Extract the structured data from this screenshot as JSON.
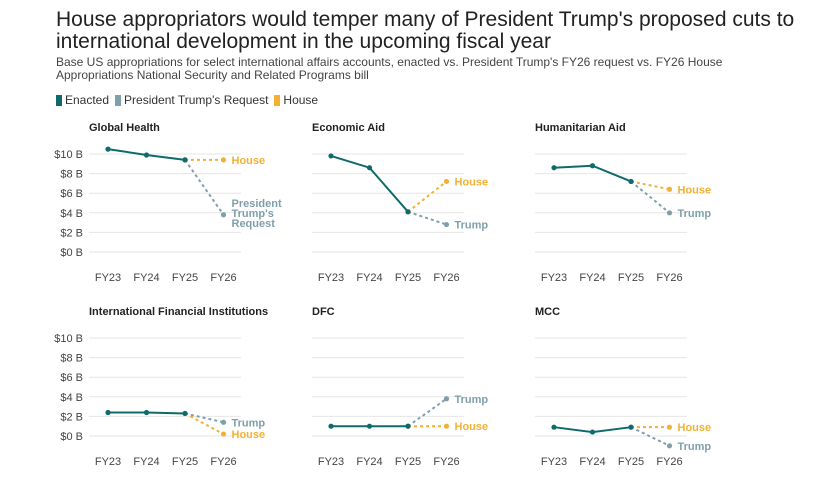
{
  "title": "House appropriators would temper many of President Trump's proposed cuts to international development in the upcoming fiscal year",
  "subtitle": "Base US appropriations for select international affairs accounts, enacted vs. President Trump's FY26 request vs. FY26 House Appropriations National Security and Related Programs bill",
  "legend": [
    {
      "label": "Enacted",
      "color": "#0f6b6b"
    },
    {
      "label": "President Trump's Request",
      "color": "#7f9faa"
    },
    {
      "label": "House",
      "color": "#f2b134"
    }
  ],
  "colors": {
    "enacted": "#0f6b6b",
    "request": "#7f9faa",
    "house": "#f2b134",
    "grid": "#e6e6e6",
    "axis_text": "#444444"
  },
  "chart_data": [
    {
      "type": "line",
      "title": "Global Health",
      "categories": [
        "FY23",
        "FY24",
        "FY25",
        "FY26"
      ],
      "y_ticks": [
        "$10 B",
        "$8 B",
        "$6 B",
        "$4 B",
        "$2 B",
        "$0 B"
      ],
      "show_y_ticks": true,
      "ylim": [
        0,
        10
      ],
      "unit": "$B",
      "series": [
        {
          "name": "Enacted",
          "values": [
            10.5,
            9.9,
            9.4,
            null
          ]
        },
        {
          "name": "House",
          "values": [
            null,
            null,
            9.4,
            9.4
          ],
          "label": "House"
        },
        {
          "name": "President Trump's Request",
          "values": [
            null,
            null,
            9.4,
            3.8
          ],
          "label": "President Trump's Request"
        }
      ]
    },
    {
      "type": "line",
      "title": "Economic Aid",
      "categories": [
        "FY23",
        "FY24",
        "FY25",
        "FY26"
      ],
      "show_y_ticks": false,
      "ylim": [
        0,
        10
      ],
      "unit": "$B",
      "series": [
        {
          "name": "Enacted",
          "values": [
            9.8,
            8.6,
            4.1,
            null
          ]
        },
        {
          "name": "House",
          "values": [
            null,
            null,
            4.1,
            7.2
          ],
          "label": "House"
        },
        {
          "name": "President Trump's Request",
          "values": [
            null,
            null,
            4.1,
            2.8
          ],
          "label": "Trump"
        }
      ]
    },
    {
      "type": "line",
      "title": "Humanitarian Aid",
      "categories": [
        "FY23",
        "FY24",
        "FY25",
        "FY26"
      ],
      "show_y_ticks": false,
      "ylim": [
        0,
        10
      ],
      "unit": "$B",
      "series": [
        {
          "name": "Enacted",
          "values": [
            8.6,
            8.8,
            7.2,
            null
          ]
        },
        {
          "name": "House",
          "values": [
            null,
            null,
            7.2,
            6.4
          ],
          "label": "House"
        },
        {
          "name": "President Trump's Request",
          "values": [
            null,
            null,
            7.2,
            4.0
          ],
          "label": "Trump"
        }
      ]
    },
    {
      "type": "line",
      "title": "International Financial Institutions",
      "categories": [
        "FY23",
        "FY24",
        "FY25",
        "FY26"
      ],
      "y_ticks": [
        "$10 B",
        "$8 B",
        "$6 B",
        "$4 B",
        "$2 B",
        "$0 B"
      ],
      "show_y_ticks": true,
      "ylim": [
        0,
        10
      ],
      "unit": "$B",
      "series": [
        {
          "name": "Enacted",
          "values": [
            2.4,
            2.4,
            2.3,
            null
          ]
        },
        {
          "name": "House",
          "values": [
            null,
            null,
            2.3,
            0.2
          ],
          "label": "House"
        },
        {
          "name": "President Trump's Request",
          "values": [
            null,
            null,
            2.3,
            1.4
          ],
          "label": "Trump"
        }
      ]
    },
    {
      "type": "line",
      "title": "DFC",
      "categories": [
        "FY23",
        "FY24",
        "FY25",
        "FY26"
      ],
      "show_y_ticks": false,
      "ylim": [
        0,
        10
      ],
      "unit": "$B",
      "series": [
        {
          "name": "Enacted",
          "values": [
            1.0,
            1.0,
            1.0,
            null
          ]
        },
        {
          "name": "House",
          "values": [
            null,
            null,
            1.0,
            1.0
          ],
          "label": "House"
        },
        {
          "name": "President Trump's Request",
          "values": [
            null,
            null,
            1.0,
            3.8
          ],
          "label": "Trump"
        }
      ]
    },
    {
      "type": "line",
      "title": "MCC",
      "categories": [
        "FY23",
        "FY24",
        "FY25",
        "FY26"
      ],
      "show_y_ticks": false,
      "ylim": [
        0,
        10
      ],
      "unit": "$B",
      "series": [
        {
          "name": "Enacted",
          "values": [
            0.9,
            0.4,
            0.9,
            null
          ]
        },
        {
          "name": "House",
          "values": [
            null,
            null,
            0.9,
            0.9
          ],
          "label": "House"
        },
        {
          "name": "President Trump's Request",
          "values": [
            null,
            null,
            0.9,
            -1.0
          ],
          "label": "Trump"
        }
      ]
    }
  ]
}
